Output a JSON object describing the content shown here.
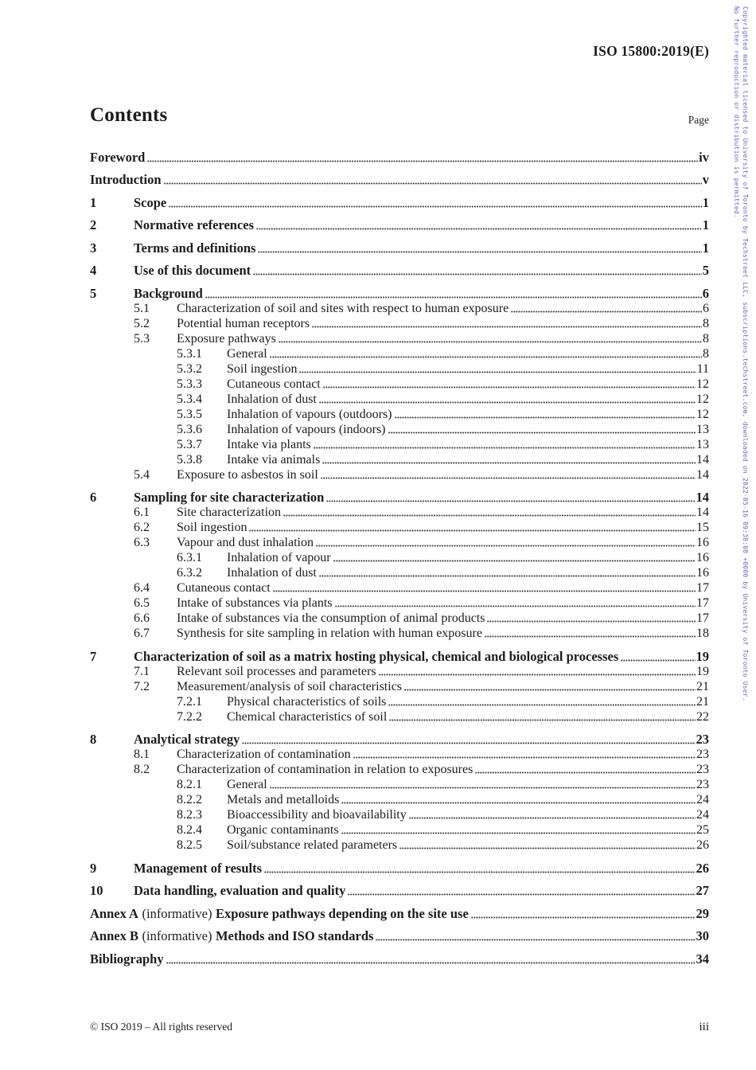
{
  "header": {
    "doc_ref": "ISO 15800:2019(E)"
  },
  "sidebar": {
    "color": "#6767c0",
    "line1": "Copyrighted material licensed to University of Toronto by Techstreet LLC, subscriptions.techstreet.com, downloaded on 2022-05-16 09:38:08 +0000 by University of Toronto User.",
    "line2": "No further reproduction or distribution is permitted."
  },
  "contents": {
    "title": "Contents",
    "page_label": "Page",
    "entries": [
      {
        "level": 0,
        "bold": true,
        "label": "Foreword",
        "page": "iv"
      },
      {
        "level": 0,
        "bold": true,
        "label": "Introduction",
        "page": "v"
      },
      {
        "level": 0,
        "bold": true,
        "num": "1",
        "label": "Scope",
        "page": "1"
      },
      {
        "level": 0,
        "bold": true,
        "num": "2",
        "label": "Normative references",
        "page": "1"
      },
      {
        "level": 0,
        "bold": true,
        "num": "3",
        "label": "Terms and definitions",
        "page": "1"
      },
      {
        "level": 0,
        "bold": true,
        "num": "4",
        "label": "Use of this document",
        "page": "5"
      },
      {
        "level": 0,
        "bold": true,
        "num": "5",
        "label": "Background",
        "page": "6"
      },
      {
        "level": 1,
        "num": "5.1",
        "label": "Characterization of soil and sites with respect to human exposure",
        "page": "6"
      },
      {
        "level": 1,
        "num": "5.2",
        "label": "Potential human receptors",
        "page": "8"
      },
      {
        "level": 1,
        "num": "5.3",
        "label": "Exposure pathways",
        "page": "8"
      },
      {
        "level": 2,
        "num": "5.3.1",
        "label": "General",
        "page": "8"
      },
      {
        "level": 2,
        "num": "5.3.2",
        "label": "Soil ingestion",
        "page": "11"
      },
      {
        "level": 2,
        "num": "5.3.3",
        "label": "Cutaneous contact",
        "page": "12"
      },
      {
        "level": 2,
        "num": "5.3.4",
        "label": "Inhalation of dust",
        "page": "12"
      },
      {
        "level": 2,
        "num": "5.3.5",
        "label": "Inhalation of vapours (outdoors)",
        "page": "12"
      },
      {
        "level": 2,
        "num": "5.3.6",
        "label": "Inhalation of vapours (indoors)",
        "page": "13"
      },
      {
        "level": 2,
        "num": "5.3.7",
        "label": "Intake via plants",
        "page": "13"
      },
      {
        "level": 2,
        "num": "5.3.8",
        "label": "Intake via animals",
        "page": "14"
      },
      {
        "level": 1,
        "num": "5.4",
        "label": "Exposure to asbestos in soil",
        "page": "14"
      },
      {
        "level": 0,
        "bold": true,
        "num": "6",
        "label": "Sampling for site characterization",
        "page": "14"
      },
      {
        "level": 1,
        "num": "6.1",
        "label": "Site characterization",
        "page": "14"
      },
      {
        "level": 1,
        "num": "6.2",
        "label": "Soil ingestion",
        "page": "15"
      },
      {
        "level": 1,
        "num": "6.3",
        "label": "Vapour and dust inhalation",
        "page": "16"
      },
      {
        "level": 2,
        "num": "6.3.1",
        "label": "Inhalation of vapour",
        "page": "16"
      },
      {
        "level": 2,
        "num": "6.3.2",
        "label": "Inhalation of dust",
        "page": "16"
      },
      {
        "level": 1,
        "num": "6.4",
        "label": "Cutaneous contact",
        "page": "17"
      },
      {
        "level": 1,
        "num": "6.5",
        "label": "Intake of substances via plants",
        "page": "17"
      },
      {
        "level": 1,
        "num": "6.6",
        "label": "Intake of substances via the consumption of animal products",
        "page": "17"
      },
      {
        "level": 1,
        "num": "6.7",
        "label": "Synthesis for site sampling in relation with human exposure",
        "page": "18"
      },
      {
        "level": 0,
        "bold": true,
        "num": "7",
        "label": "Characterization of soil as a matrix hosting physical, chemical and biological processes",
        "page": "19"
      },
      {
        "level": 1,
        "num": "7.1",
        "label": "Relevant soil processes and parameters",
        "page": "19"
      },
      {
        "level": 1,
        "num": "7.2",
        "label": "Measurement/analysis of soil characteristics",
        "page": "21"
      },
      {
        "level": 2,
        "num": "7.2.1",
        "label": "Physical characteristics of soils",
        "page": "21"
      },
      {
        "level": 2,
        "num": "7.2.2",
        "label": "Chemical characteristics of soil",
        "page": "22"
      },
      {
        "level": 0,
        "bold": true,
        "num": "8",
        "label": "Analytical strategy",
        "page": "23"
      },
      {
        "level": 1,
        "num": "8.1",
        "label": "Characterization of contamination",
        "page": "23"
      },
      {
        "level": 1,
        "num": "8.2",
        "label": "Characterization of contamination in relation to exposures",
        "page": "23"
      },
      {
        "level": 2,
        "num": "8.2.1",
        "label": "General",
        "page": "23"
      },
      {
        "level": 2,
        "num": "8.2.2",
        "label": "Metals and metalloids",
        "page": "24"
      },
      {
        "level": 2,
        "num": "8.2.3",
        "label": "Bioaccessibility and bioavailability",
        "page": "24"
      },
      {
        "level": 2,
        "num": "8.2.4",
        "label": "Organic contaminants",
        "page": "25"
      },
      {
        "level": 2,
        "num": "8.2.5",
        "label": "Soil/substance related parameters",
        "page": "26"
      },
      {
        "level": 0,
        "bold": true,
        "num": "9",
        "label": "Management of results",
        "page": "26"
      },
      {
        "level": 0,
        "bold": true,
        "num": "10",
        "label": "Data handling, evaluation and quality",
        "page": "27"
      },
      {
        "level": 0,
        "bold": true,
        "prefix": "Annex A",
        "mid": "(informative)",
        "label": "Exposure pathways depending on the site use",
        "page": "29"
      },
      {
        "level": 0,
        "bold": true,
        "prefix": "Annex B",
        "mid": "(informative)",
        "label": "Methods and ISO standards",
        "page": "30"
      },
      {
        "level": 0,
        "bold": true,
        "label": "Bibliography",
        "page": "34"
      }
    ]
  },
  "footer": {
    "copyright": "© ISO 2019 – All rights reserved",
    "page_number": "iii"
  }
}
